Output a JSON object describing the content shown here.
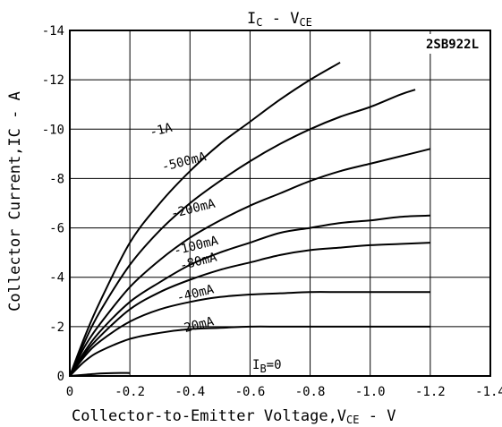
{
  "chart_data": {
    "type": "line",
    "title": "IC - VCE",
    "title_parts": {
      "main_i": "I",
      "main_c": "C",
      "dash": " - V",
      "sub_ce": "CE"
    },
    "model": "2SB922L",
    "xlabel": "Collector-to-Emitter Voltage,VCE - V",
    "xlabel_parts": {
      "prefix": "Collector-to-Emitter Voltage,V",
      "sub": "CE",
      "suffix": " - V"
    },
    "ylabel": "Collector Current,IC - A",
    "xlim": [
      0,
      -1.4
    ],
    "ylim": [
      0,
      -14
    ],
    "x_ticks": [
      0,
      -0.2,
      -0.4,
      -0.6,
      -0.8,
      -1.0,
      -1.2,
      -1.4
    ],
    "x_tick_labels": [
      "0",
      "-0.2",
      "-0.4",
      "-0.6",
      "-0.8",
      "-1.0",
      "-1.2",
      "-1.4"
    ],
    "y_ticks": [
      0,
      -2,
      -4,
      -6,
      -8,
      -10,
      -12,
      -14
    ],
    "y_tick_labels": [
      "0",
      "-2",
      "-4",
      "-6",
      "-8",
      "-10",
      "-12",
      "-14"
    ],
    "grid": true,
    "ib_label": {
      "prefix": "I",
      "sub": "B",
      "suffix": "=0"
    },
    "series": [
      {
        "name": "-1A",
        "x": [
          0,
          -0.05,
          -0.1,
          -0.2,
          -0.3,
          -0.4,
          -0.5,
          -0.6,
          -0.7,
          -0.8,
          -0.9
        ],
        "y": [
          0,
          -1.6,
          -3.0,
          -5.4,
          -7.0,
          -8.3,
          -9.4,
          -10.3,
          -11.2,
          -12.0,
          -12.7
        ]
      },
      {
        "name": "-500mA",
        "x": [
          0,
          -0.05,
          -0.1,
          -0.2,
          -0.3,
          -0.4,
          -0.5,
          -0.6,
          -0.7,
          -0.8,
          -0.9,
          -1.0,
          -1.1,
          -1.15
        ],
        "y": [
          0,
          -1.4,
          -2.6,
          -4.5,
          -5.9,
          -7.0,
          -7.9,
          -8.7,
          -9.4,
          -10.0,
          -10.5,
          -10.9,
          -11.4,
          -11.6
        ]
      },
      {
        "name": "-200mA",
        "x": [
          0,
          -0.05,
          -0.1,
          -0.2,
          -0.3,
          -0.4,
          -0.5,
          -0.6,
          -0.7,
          -0.8,
          -0.9,
          -1.0,
          -1.1,
          -1.2
        ],
        "y": [
          0,
          -1.2,
          -2.1,
          -3.6,
          -4.7,
          -5.6,
          -6.3,
          -6.9,
          -7.4,
          -7.9,
          -8.3,
          -8.6,
          -8.9,
          -9.2
        ]
      },
      {
        "name": "-100mA",
        "x": [
          0,
          -0.05,
          -0.1,
          -0.2,
          -0.3,
          -0.4,
          -0.5,
          -0.6,
          -0.7,
          -0.8,
          -0.9,
          -1.0,
          -1.1,
          -1.2
        ],
        "y": [
          0,
          -1.0,
          -1.8,
          -3.0,
          -3.8,
          -4.5,
          -5.0,
          -5.4,
          -5.8,
          -6.0,
          -6.2,
          -6.3,
          -6.45,
          -6.5
        ]
      },
      {
        "name": "-80mA",
        "x": [
          0,
          -0.05,
          -0.1,
          -0.2,
          -0.3,
          -0.4,
          -0.5,
          -0.6,
          -0.7,
          -0.8,
          -0.9,
          -1.0,
          -1.1,
          -1.2
        ],
        "y": [
          0,
          -0.9,
          -1.6,
          -2.7,
          -3.4,
          -3.9,
          -4.3,
          -4.6,
          -4.9,
          -5.1,
          -5.2,
          -5.3,
          -5.35,
          -5.4
        ]
      },
      {
        "name": "-40mA",
        "x": [
          0,
          -0.05,
          -0.1,
          -0.2,
          -0.3,
          -0.4,
          -0.5,
          -0.6,
          -0.7,
          -0.8,
          -0.9,
          -1.0,
          -1.1,
          -1.2
        ],
        "y": [
          0,
          -0.8,
          -1.4,
          -2.2,
          -2.7,
          -3.0,
          -3.2,
          -3.3,
          -3.35,
          -3.4,
          -3.4,
          -3.4,
          -3.4,
          -3.4
        ]
      },
      {
        "name": "-20mA",
        "x": [
          0,
          -0.05,
          -0.1,
          -0.2,
          -0.3,
          -0.4,
          -0.5,
          -0.6,
          -0.7,
          -0.8,
          -0.9,
          -1.0,
          -1.1,
          -1.2
        ],
        "y": [
          0,
          -0.6,
          -1.0,
          -1.5,
          -1.75,
          -1.9,
          -1.95,
          -2.0,
          -2.0,
          -2.0,
          -2.0,
          -2.0,
          -2.0,
          -2.0
        ]
      },
      {
        "name": "",
        "x": [
          0,
          -0.05,
          -0.1,
          -0.15,
          -0.2
        ],
        "y": [
          0,
          -0.05,
          -0.1,
          -0.12,
          -0.12
        ]
      }
    ],
    "curve_labels": [
      {
        "text": "-1A",
        "x": -0.27,
        "y": -9.7
      },
      {
        "text": "-500mA",
        "x": -0.31,
        "y": -8.3
      },
      {
        "text": "-200mA",
        "x": -0.34,
        "y": -6.4
      },
      {
        "text": "-100mA",
        "x": -0.35,
        "y": -4.9
      },
      {
        "text": "-80mA",
        "x": -0.37,
        "y": -4.3
      },
      {
        "text": "-40mA",
        "x": -0.36,
        "y": -3.0
      },
      {
        "text": "-20mA",
        "x": -0.36,
        "y": -1.7
      }
    ]
  }
}
